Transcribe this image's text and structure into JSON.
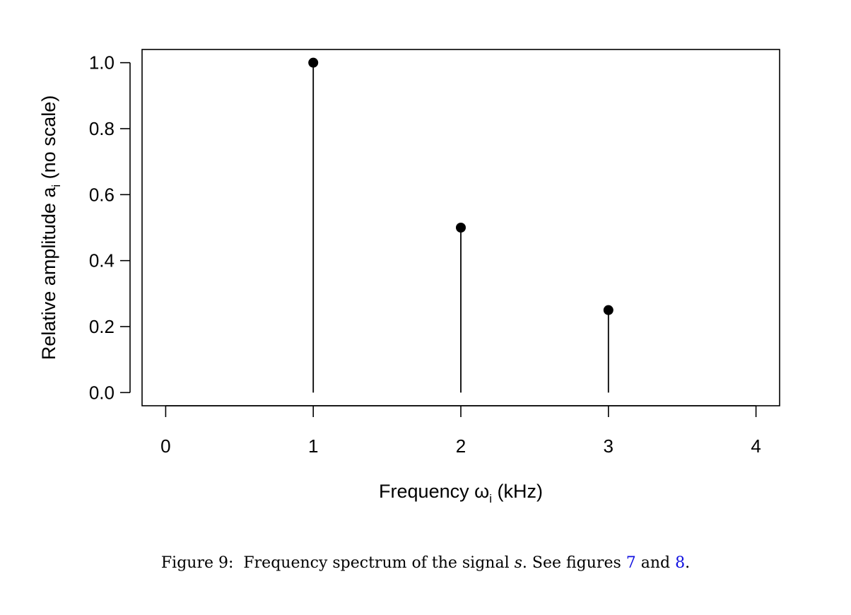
{
  "chart_data": {
    "type": "stem",
    "x": [
      1,
      2,
      3
    ],
    "y": [
      1.0,
      0.5,
      0.25
    ],
    "xlim": [
      -0.16,
      4.16
    ],
    "ylim": [
      -0.04,
      1.04
    ],
    "xticks": [
      "0",
      "1",
      "2",
      "3",
      "4"
    ],
    "xtick_values": [
      0,
      1,
      2,
      3,
      4
    ],
    "yticks": [
      "0.0",
      "0.2",
      "0.4",
      "0.6",
      "0.8",
      "1.0"
    ],
    "ytick_values": [
      0,
      0.2,
      0.4,
      0.6,
      0.8,
      1.0
    ],
    "xlabel_main": "Frequency ω",
    "xlabel_sub": "i",
    "xlabel_tail": " (kHz)",
    "ylabel_main": "Relative amplitude a",
    "ylabel_sub": "i",
    "ylabel_tail": " (no scale)",
    "grid": false,
    "marker_color": "#000000"
  },
  "caption": {
    "label": "Figure 9:",
    "text_before": "Frequency spectrum of the signal ",
    "signal": "s",
    "text_mid": ". See figures ",
    "ref1": "7",
    "text_and": " and ",
    "ref2": "8",
    "text_end": "."
  }
}
